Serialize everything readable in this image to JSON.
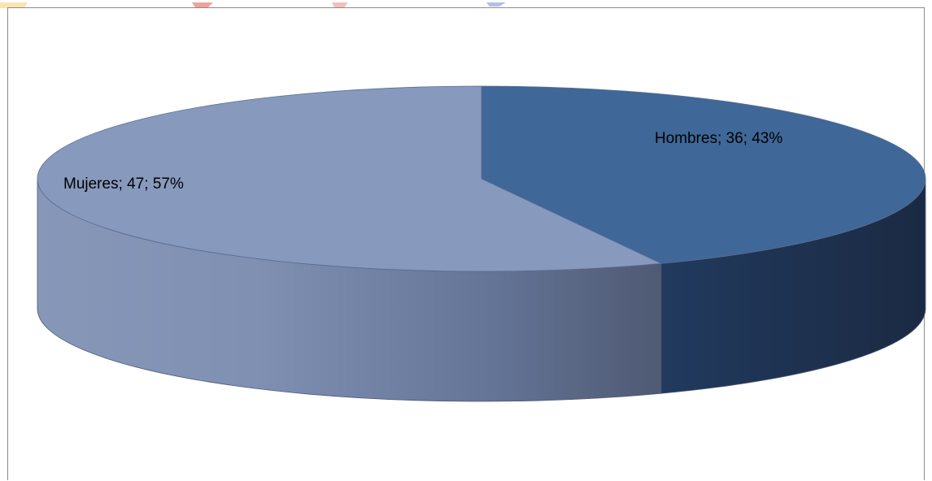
{
  "chart_data": {
    "type": "pie",
    "three_d": true,
    "categories": [
      "Hombres",
      "Mujeres"
    ],
    "values": [
      36,
      47
    ],
    "percentages": [
      43,
      57
    ],
    "data_labels": [
      "Hombres; 36; 43%",
      "Mujeres; 47; 57%"
    ],
    "colors": {
      "Hombres": "#3f6797",
      "Mujeres": "#8799bd"
    },
    "legend": "none"
  }
}
